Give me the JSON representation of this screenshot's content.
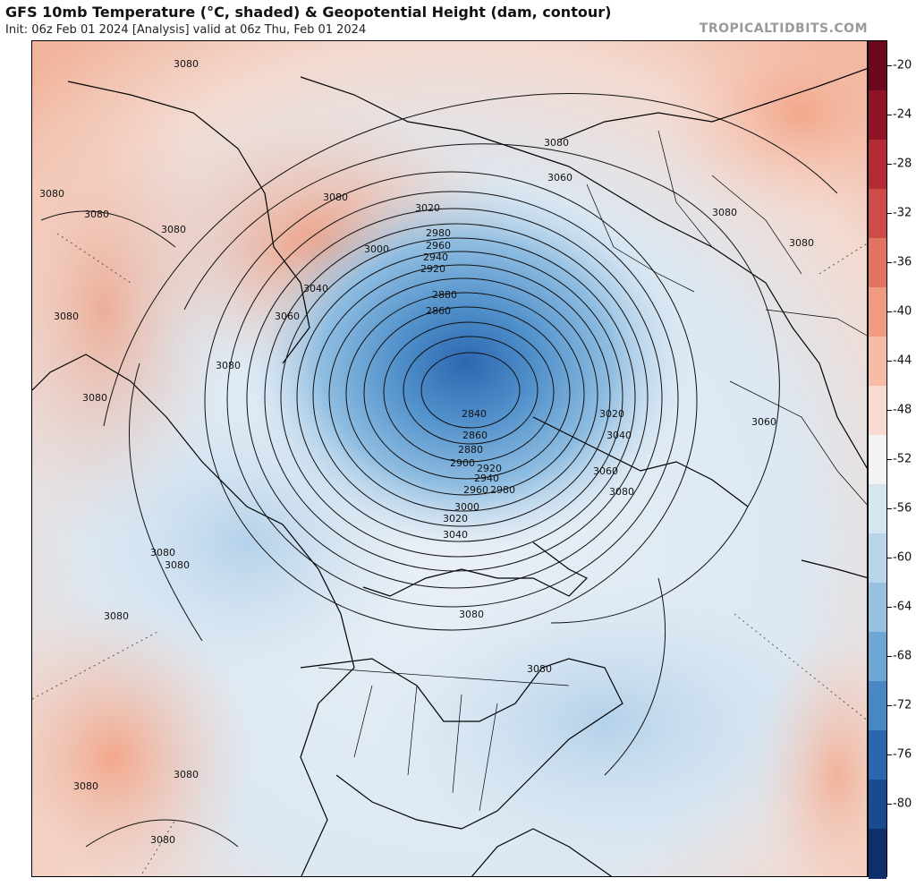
{
  "header": {
    "title": "GFS 10mb Temperature (°C, shaded) & Geopotential Height (dam, contour)",
    "subtitle": "Init: 06z Feb 01 2024   [Analysis]   valid at 06z Thu, Feb 01 2024",
    "brand": "TROPICALTIDBITS.COM"
  },
  "colorbar": {
    "ticks": [
      "-20",
      "-24",
      "-28",
      "-32",
      "-36",
      "-40",
      "-44",
      "-48",
      "-52",
      "-56",
      "-60",
      "-64",
      "-68",
      "-72",
      "-76",
      "-80"
    ],
    "colors": [
      "#6b0a1c",
      "#8e1426",
      "#b42a35",
      "#cf4b48",
      "#e27360",
      "#f09a7f",
      "#f6bca5",
      "#f9dccf",
      "#f3f3f5",
      "#d6e6f1",
      "#b8d5ea",
      "#97c1e1",
      "#6ea6d4",
      "#4787c4",
      "#2a67ae",
      "#1a4a90",
      "#0e2f6b"
    ]
  },
  "contours": {
    "labels": [
      "3080",
      "3080",
      "3080",
      "3080",
      "3080",
      "3080",
      "3080",
      "3080",
      "3080",
      "3080",
      "3080",
      "3080",
      "3080",
      "3080",
      "3080",
      "3080",
      "3080",
      "3080",
      "3080",
      "3080",
      "3060",
      "3060",
      "3060",
      "3060",
      "3040",
      "3040",
      "3040",
      "3020",
      "3020",
      "3020",
      "3000",
      "3000",
      "2980",
      "2980",
      "2960",
      "2960",
      "2940",
      "2940",
      "2920",
      "2920",
      "2900",
      "2880",
      "2880",
      "2860",
      "2860",
      "2840"
    ]
  }
}
